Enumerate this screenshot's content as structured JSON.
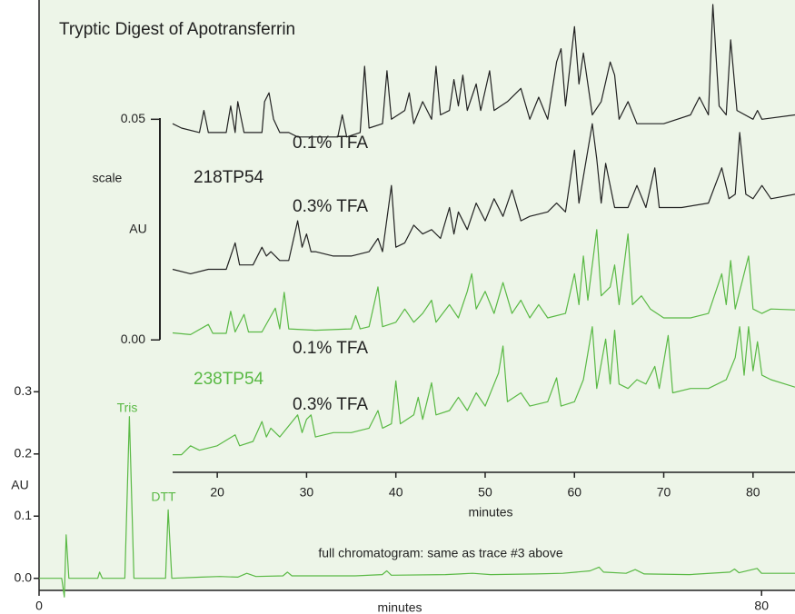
{
  "chart_data": [
    {
      "type": "line",
      "xlabel": "minutes",
      "ylabel": "AU",
      "xlim": [
        0,
        83.7
      ],
      "ylim": [
        -0.034,
        0.93
      ],
      "xticks": [
        0,
        80
      ],
      "yticks": [
        {
          "value": 0,
          "label": "0.0"
        },
        0.1,
        0.2,
        0.3
      ],
      "annotations": [
        "Tris",
        "DTT"
      ],
      "series": [
        {
          "name": "full chromatogram: same as trace #3 above",
          "color": "#5ab945",
          "x": [
            0,
            2.5,
            2.8,
            3,
            3.3,
            4,
            6.5,
            6.7,
            7,
            9.5,
            10,
            10.5,
            14,
            14.3,
            14.7,
            18,
            20,
            22,
            23,
            24,
            27,
            27.5,
            28,
            35,
            38,
            38.5,
            39,
            45,
            48,
            50,
            55,
            58,
            61,
            62,
            62.5,
            65,
            66,
            67,
            72,
            76.5,
            77,
            77.5,
            79.5,
            80,
            84
          ],
          "values": [
            0,
            0,
            -0.03,
            0.07,
            0,
            0,
            0,
            0.01,
            0,
            0,
            0.26,
            0,
            0,
            0.11,
            0,
            0.002,
            0.003,
            0.002,
            0.008,
            0.003,
            0.004,
            0.01,
            0.004,
            0.004,
            0.006,
            0.012,
            0.005,
            0.006,
            0.008,
            0.006,
            0.007,
            0.008,
            0.012,
            0.018,
            0.01,
            0.008,
            0.014,
            0.007,
            0.006,
            0.01,
            0.015,
            0.009,
            0.016,
            0.008,
            0.008
          ]
        }
      ]
    },
    {
      "type": "line",
      "title": "Tryptic Digest of Apotransferrin",
      "xlabel": "minutes",
      "ylabel": "AU",
      "scale_label": "scale",
      "xlim": [
        15,
        84.7
      ],
      "ylim": [
        -0.03,
        0.076
      ],
      "xticks": [
        20,
        30,
        40,
        50,
        60,
        70,
        80
      ],
      "yticks": [
        {
          "value": 0,
          "label": "0.00"
        },
        0.05
      ],
      "column_labels": [
        "218TP54",
        "238TP54"
      ],
      "series": [
        {
          "name": "0.1% TFA",
          "color": "#222222",
          "x": [
            15,
            16,
            18,
            18.5,
            19,
            21,
            21.5,
            22,
            22.3,
            23,
            25,
            25.3,
            25.8,
            26.3,
            27,
            28,
            29,
            33.5,
            34,
            34.5,
            36,
            36.5,
            37,
            38.5,
            39,
            39.5,
            41,
            41.5,
            42,
            43,
            44,
            44.5,
            45,
            46,
            46.5,
            47,
            47.5,
            48,
            49,
            49.5,
            50.5,
            51,
            52.5,
            54,
            55,
            56,
            57,
            58,
            58.5,
            59,
            60,
            60.5,
            61,
            62,
            63,
            64,
            64.5,
            65,
            66,
            67,
            70,
            73,
            74,
            75,
            75.5,
            76.2,
            77,
            77.5,
            78.2,
            80,
            80.5,
            81,
            84.7
          ],
          "values": [
            0.049,
            0.048,
            0.047,
            0.052,
            0.047,
            0.047,
            0.053,
            0.047,
            0.054,
            0.047,
            0.047,
            0.054,
            0.056,
            0.05,
            0.047,
            0.047,
            0.046,
            0.046,
            0.051,
            0.046,
            0.047,
            0.062,
            0.048,
            0.049,
            0.061,
            0.05,
            0.052,
            0.056,
            0.049,
            0.054,
            0.05,
            0.062,
            0.051,
            0.052,
            0.059,
            0.053,
            0.06,
            0.052,
            0.058,
            0.052,
            0.061,
            0.052,
            0.054,
            0.057,
            0.05,
            0.055,
            0.05,
            0.063,
            0.066,
            0.053,
            0.071,
            0.058,
            0.065,
            0.051,
            0.054,
            0.063,
            0.06,
            0.05,
            0.054,
            0.049,
            0.049,
            0.051,
            0.055,
            0.051,
            0.076,
            0.053,
            0.051,
            0.068,
            0.052,
            0.05,
            0.052,
            0.05,
            0.051
          ]
        },
        {
          "name": "0.3% TFA",
          "color": "#222222",
          "x": [
            15,
            17,
            19,
            21,
            22,
            22.5,
            24,
            25,
            25.5,
            26,
            27,
            28,
            29,
            29.5,
            30,
            30.5,
            31,
            33,
            35,
            37,
            38,
            38.5,
            39.5,
            40,
            41,
            42,
            43,
            44,
            45,
            46,
            46.5,
            47,
            48,
            49,
            50,
            51,
            52,
            53,
            54,
            55,
            57,
            58,
            59,
            60,
            60.5,
            61,
            62,
            62.5,
            63,
            63.5,
            64.5,
            66,
            67,
            68,
            69,
            69.5,
            72,
            75,
            76.5,
            77.3,
            78,
            78.5,
            79.2,
            80,
            81,
            82,
            84.7
          ],
          "values": [
            0.016,
            0.015,
            0.016,
            0.016,
            0.022,
            0.017,
            0.017,
            0.021,
            0.019,
            0.02,
            0.018,
            0.018,
            0.027,
            0.021,
            0.024,
            0.02,
            0.02,
            0.019,
            0.019,
            0.02,
            0.023,
            0.02,
            0.035,
            0.021,
            0.022,
            0.026,
            0.024,
            0.025,
            0.023,
            0.03,
            0.024,
            0.029,
            0.025,
            0.031,
            0.027,
            0.032,
            0.028,
            0.034,
            0.027,
            0.028,
            0.029,
            0.031,
            0.029,
            0.043,
            0.031,
            0.037,
            0.049,
            0.041,
            0.031,
            0.04,
            0.03,
            0.03,
            0.035,
            0.03,
            0.039,
            0.03,
            0.03,
            0.031,
            0.039,
            0.032,
            0.033,
            0.047,
            0.033,
            0.032,
            0.035,
            0.032,
            0.033
          ]
        },
        {
          "name": "0.1% TFA",
          "color": "#5ab945",
          "x": [
            15,
            17,
            19,
            19.5,
            21,
            21.5,
            22,
            23,
            23.5,
            25,
            26.5,
            27,
            27.5,
            28,
            31,
            35,
            35.5,
            36,
            37,
            38,
            38.5,
            40,
            41,
            42,
            43,
            44,
            44.5,
            46,
            47,
            48,
            48.5,
            49,
            50,
            51,
            52,
            53,
            54,
            55,
            56,
            57,
            59,
            60,
            60.5,
            61,
            61.5,
            62.5,
            63,
            64,
            64.5,
            65,
            66,
            66.5,
            67.5,
            68.5,
            70,
            73,
            75,
            76.5,
            77,
            77.5,
            78,
            79.5,
            80,
            81,
            82,
            84.7
          ],
          "values": [
            0.0016,
            0.0012,
            0.0035,
            0.0015,
            0.0015,
            0.0065,
            0.0018,
            0.0058,
            0.0018,
            0.0018,
            0.0072,
            0.0025,
            0.0108,
            0.0025,
            0.0022,
            0.0025,
            0.0055,
            0.0025,
            0.003,
            0.012,
            0.003,
            0.004,
            0.007,
            0.004,
            0.006,
            0.009,
            0.004,
            0.008,
            0.005,
            0.011,
            0.015,
            0.007,
            0.011,
            0.006,
            0.013,
            0.006,
            0.009,
            0.005,
            0.008,
            0.005,
            0.006,
            0.015,
            0.008,
            0.019,
            0.009,
            0.025,
            0.01,
            0.012,
            0.017,
            0.008,
            0.024,
            0.008,
            0.01,
            0.007,
            0.005,
            0.005,
            0.006,
            0.015,
            0.008,
            0.018,
            0.007,
            0.019,
            0.007,
            0.006,
            0.007,
            0.0068
          ]
        },
        {
          "name": "0.3% TFA",
          "color": "#5ab945",
          "x": [
            15,
            16,
            17,
            18,
            20,
            22,
            22.5,
            24,
            25,
            25.5,
            26,
            27,
            29,
            29.5,
            30,
            30.5,
            31,
            33,
            35,
            37,
            38,
            38.5,
            39.5,
            40,
            40.5,
            42,
            42.5,
            43,
            44,
            44.5,
            46,
            47,
            48,
            49,
            50,
            51,
            51.5,
            52,
            52.5,
            54,
            55,
            57,
            58,
            58.5,
            60,
            61,
            62,
            62.5,
            63.5,
            64,
            64.5,
            65,
            66,
            67,
            68,
            69,
            69.5,
            70.5,
            71,
            73,
            75,
            77,
            78,
            78.5,
            79,
            79.5,
            80,
            80.5,
            81,
            82,
            84.7
          ],
          "values": [
            -0.026,
            -0.026,
            -0.024,
            -0.025,
            -0.024,
            -0.0215,
            -0.024,
            -0.023,
            -0.0185,
            -0.022,
            -0.02,
            -0.022,
            -0.017,
            -0.021,
            -0.018,
            -0.017,
            -0.022,
            -0.021,
            -0.021,
            -0.02,
            -0.016,
            -0.02,
            -0.019,
            -0.0093,
            -0.019,
            -0.017,
            -0.013,
            -0.018,
            -0.0097,
            -0.017,
            -0.016,
            -0.013,
            -0.016,
            -0.012,
            -0.015,
            -0.01,
            -0.0075,
            -0.0014,
            -0.014,
            -0.012,
            -0.015,
            -0.014,
            -0.0086,
            -0.015,
            -0.014,
            -0.009,
            0.003,
            -0.011,
            0.0002,
            -0.01,
            0.0022,
            -0.01,
            -0.011,
            -0.009,
            -0.01,
            -0.006,
            -0.011,
            0.001,
            -0.012,
            -0.011,
            -0.011,
            -0.009,
            -0.004,
            0.003,
            -0.008,
            0.003,
            -0.007,
            -0.0004,
            -0.008,
            -0.009,
            -0.0107
          ]
        }
      ]
    }
  ]
}
